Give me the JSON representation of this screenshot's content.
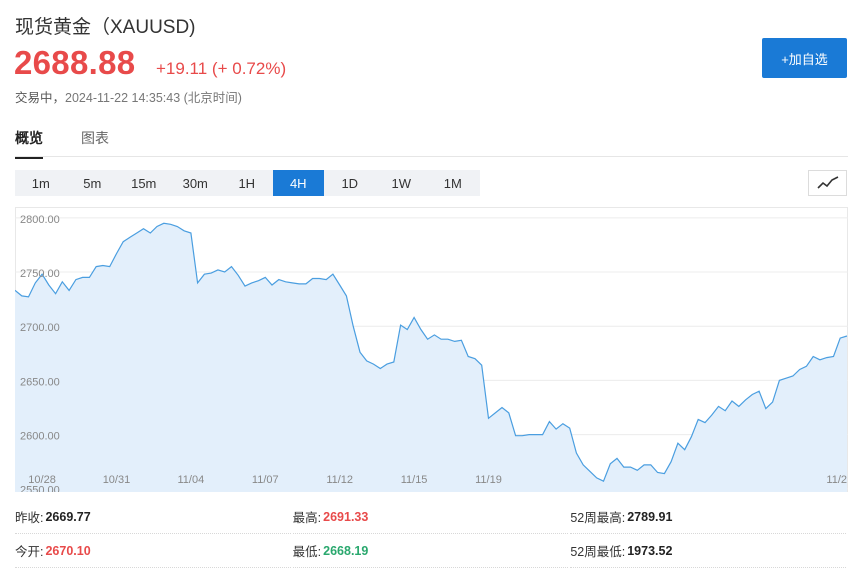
{
  "header": {
    "title": "现货黄金（XAUUSD)",
    "price": "2688.88",
    "change": "+19.11 (+ 0.72%)",
    "status": "交易中，",
    "datetime": "2024-11-22 14:35:43 (北京时间)",
    "price_color": "#e84a4a",
    "watch_button": "+加自选"
  },
  "tabs": [
    {
      "label": "概览",
      "active": true
    },
    {
      "label": "图表",
      "active": false
    }
  ],
  "intervals": [
    {
      "label": "1m",
      "active": false
    },
    {
      "label": "5m",
      "active": false
    },
    {
      "label": "15m",
      "active": false
    },
    {
      "label": "30m",
      "active": false
    },
    {
      "label": "1H",
      "active": false
    },
    {
      "label": "4H",
      "active": true
    },
    {
      "label": "1D",
      "active": false
    },
    {
      "label": "1W",
      "active": false
    },
    {
      "label": "1M",
      "active": false
    }
  ],
  "chart_type_icon": "line-chart-icon",
  "accent_color": "#1a7ad6",
  "chart_data": {
    "type": "area",
    "ylim": [
      2547,
      2810
    ],
    "y_ticks": [
      "2800.00",
      "2750.00",
      "2700.00",
      "2650.00",
      "2600.00",
      "2550.00"
    ],
    "y_tick_values": [
      2800,
      2750,
      2700,
      2650,
      2600,
      2550
    ],
    "x_ticks": [
      "10/28",
      "10/31",
      "11/04",
      "11/07",
      "11/12",
      "11/15",
      "11/19",
      "11/2"
    ],
    "x_tick_index": [
      4,
      15,
      26,
      37,
      48,
      59,
      70,
      81
    ],
    "grid": true,
    "line_color": "#4a9ee0",
    "fill_color": "#e3effb",
    "series": [
      {
        "values": [
          2733,
          2728,
          2727,
          2740,
          2748,
          2738,
          2730,
          2741,
          2733,
          2743,
          2745,
          2745,
          2755,
          2756,
          2755,
          2767,
          2778,
          2782,
          2786,
          2790,
          2786,
          2792,
          2795,
          2794,
          2792,
          2788,
          2786,
          2740,
          2748,
          2749,
          2752,
          2750,
          2755,
          2747,
          2737,
          2740,
          2742,
          2745,
          2738,
          2743,
          2741,
          2740,
          2739,
          2739,
          2744,
          2744,
          2743,
          2748,
          2738,
          2728,
          2700,
          2676,
          2668,
          2665,
          2661,
          2665,
          2667,
          2701,
          2697,
          2708,
          2697,
          2688,
          2692,
          2688,
          2688,
          2686,
          2687,
          2672,
          2670,
          2664,
          2615,
          2620,
          2625,
          2620,
          2599,
          2599,
          2600,
          2600,
          2600,
          2612,
          2605,
          2610,
          2606,
          2583,
          2572,
          2566,
          2560,
          2557,
          2573,
          2578,
          2570,
          2570,
          2567,
          2572,
          2572,
          2565,
          2564,
          2575,
          2592,
          2586,
          2598,
          2614,
          2611,
          2618,
          2626,
          2622,
          2631,
          2626,
          2632,
          2637,
          2640,
          2624,
          2630,
          2650,
          2652,
          2654,
          2660,
          2663,
          2672,
          2669,
          2671,
          2672,
          2689,
          2691
        ]
      }
    ]
  },
  "stats": [
    [
      {
        "label": "昨收:",
        "value": "2669.77",
        "color": "default"
      },
      {
        "label": "最高:",
        "value": "2691.33",
        "color": "red"
      },
      {
        "label": "52周最高:",
        "value": "2789.91",
        "color": "default"
      }
    ],
    [
      {
        "label": "今开:",
        "value": "2670.10",
        "color": "red"
      },
      {
        "label": "最低:",
        "value": "2668.19",
        "color": "green"
      },
      {
        "label": "52周最低:",
        "value": "1973.52",
        "color": "default"
      }
    ]
  ]
}
